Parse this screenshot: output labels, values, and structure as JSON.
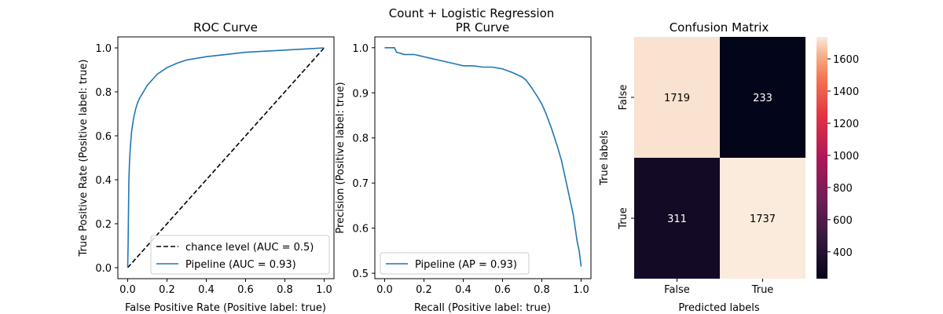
{
  "suptitle": "Count + Logistic Regression",
  "chart_data": [
    {
      "type": "line",
      "title": "ROC Curve",
      "xlabel": "False Positive Rate (Positive label: true)",
      "ylabel": "True Positive Rate (Positive label: true)",
      "xlim": [
        -0.05,
        1.05
      ],
      "ylim": [
        -0.05,
        1.05
      ],
      "xticks": [
        0.0,
        0.2,
        0.4,
        0.6,
        0.8,
        1.0
      ],
      "yticks": [
        0.0,
        0.2,
        0.4,
        0.6,
        0.8,
        1.0
      ],
      "legend_position": "lower-right",
      "series": [
        {
          "name": "chance level (AUC = 0.5)",
          "color": "#000000",
          "dash": true,
          "x": [
            0,
            1
          ],
          "y": [
            0,
            1
          ]
        },
        {
          "name": "Pipeline (AUC = 0.93)",
          "color": "#1f77b4",
          "x": [
            0,
            0.002,
            0.004,
            0.006,
            0.01,
            0.015,
            0.02,
            0.03,
            0.04,
            0.05,
            0.06,
            0.08,
            0.1,
            0.12,
            0.15,
            0.2,
            0.25,
            0.3,
            0.4,
            0.5,
            0.6,
            0.7,
            0.8,
            0.9,
            1.0
          ],
          "y": [
            0,
            0.1,
            0.25,
            0.4,
            0.5,
            0.57,
            0.62,
            0.68,
            0.72,
            0.75,
            0.77,
            0.8,
            0.83,
            0.85,
            0.88,
            0.91,
            0.93,
            0.945,
            0.96,
            0.97,
            0.98,
            0.985,
            0.99,
            0.995,
            1.0
          ]
        }
      ]
    },
    {
      "type": "line",
      "title": "PR Curve",
      "xlabel": "Recall (Positive label: true)",
      "ylabel": "Precision (Positive label: true)",
      "xlim": [
        -0.05,
        1.05
      ],
      "ylim": [
        0.488,
        1.024
      ],
      "xticks": [
        0.0,
        0.2,
        0.4,
        0.6,
        0.8,
        1.0
      ],
      "yticks": [
        0.5,
        0.6,
        0.7,
        0.8,
        0.9,
        1.0
      ],
      "legend_position": "lower-left",
      "series": [
        {
          "name": "Pipeline (AP = 0.93)",
          "color": "#1f77b4",
          "x": [
            0,
            0.05,
            0.06,
            0.1,
            0.15,
            0.2,
            0.25,
            0.3,
            0.35,
            0.4,
            0.45,
            0.5,
            0.55,
            0.6,
            0.65,
            0.7,
            0.72,
            0.75,
            0.78,
            0.8,
            0.82,
            0.85,
            0.88,
            0.9,
            0.92,
            0.94,
            0.96,
            0.97,
            0.98,
            0.99,
            1.0
          ],
          "y": [
            1.0,
            1.0,
            0.99,
            0.985,
            0.985,
            0.98,
            0.975,
            0.97,
            0.965,
            0.96,
            0.96,
            0.957,
            0.957,
            0.953,
            0.945,
            0.935,
            0.928,
            0.91,
            0.89,
            0.875,
            0.855,
            0.82,
            0.78,
            0.75,
            0.71,
            0.67,
            0.63,
            0.6,
            0.57,
            0.55,
            0.515
          ]
        }
      ]
    },
    {
      "type": "heatmap",
      "title": "Confusion Matrix",
      "xlabel": "Predicted labels",
      "ylabel": "True labels",
      "row_labels": [
        "False",
        "True"
      ],
      "col_labels": [
        "False",
        "True"
      ],
      "values": [
        [
          1719,
          233
        ],
        [
          311,
          1737
        ]
      ],
      "colorbar_ticks": [
        400,
        600,
        800,
        1000,
        1200,
        1400,
        1600
      ],
      "color_range": [
        233,
        1737
      ]
    }
  ]
}
